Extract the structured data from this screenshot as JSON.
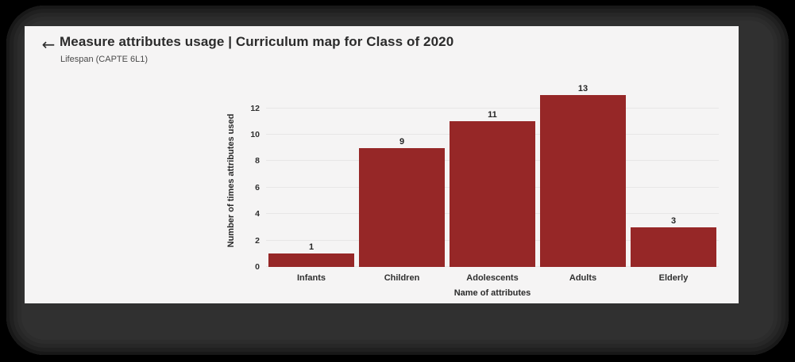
{
  "header": {
    "back_icon": "←",
    "title": "Measure attributes usage | Curriculum map for Class of 2020",
    "subtitle": "Lifespan (CAPTE 6L1)"
  },
  "chart_data": {
    "type": "bar",
    "categories": [
      "Infants",
      "Children",
      "Adolescents",
      "Adults",
      "Elderly"
    ],
    "values": [
      1,
      9,
      11,
      13,
      3
    ],
    "title": "",
    "xlabel": "Name of attributes",
    "ylabel": "Number of times attributes used",
    "yticks": [
      0,
      2,
      4,
      6,
      8,
      10,
      12
    ],
    "ylim": [
      0,
      13.3
    ],
    "grid": true,
    "legend": false,
    "value_labels_shown": true,
    "bar_color": "#962727"
  },
  "colors": {
    "bar": "#962727",
    "page_background": "#f5f4f4",
    "frame_background": "#2c2c2c"
  }
}
